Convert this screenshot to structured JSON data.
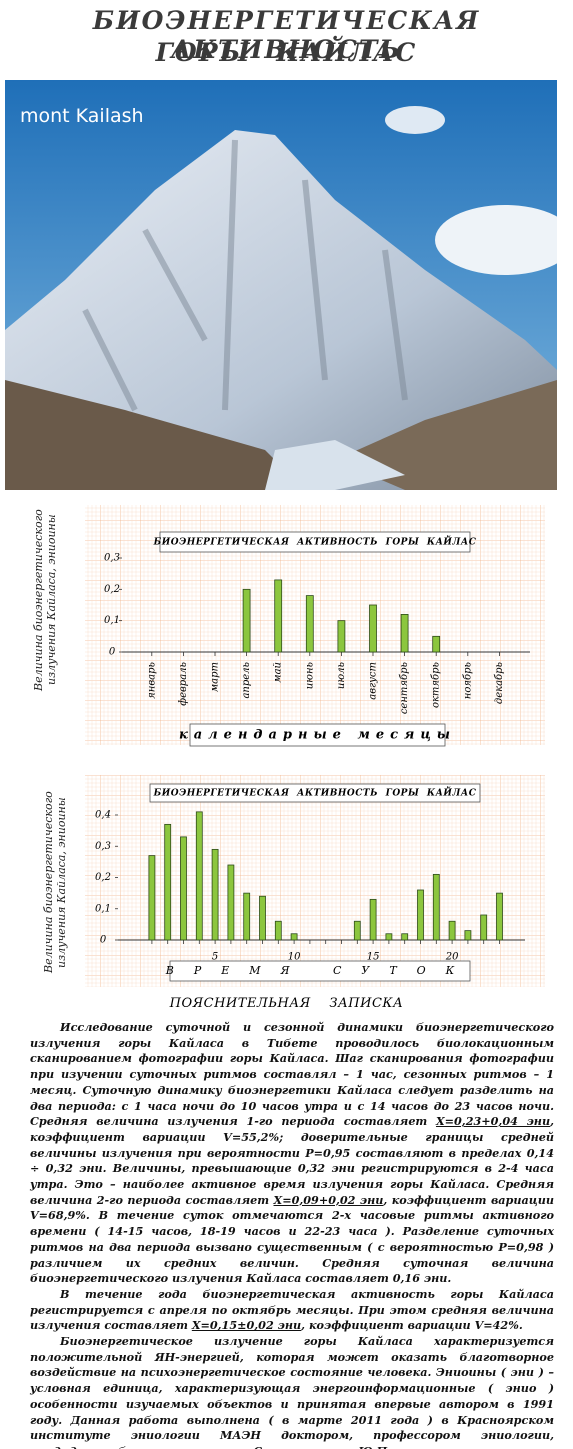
{
  "header": {
    "title": [
      "БИОЭНЕРГЕТИЧЕСКАЯ АКТИВНОСТЬ",
      "ГОРЫ КАЙЛАС"
    ]
  },
  "photo": {
    "caption": "mont Kailash"
  },
  "chart_data": [
    {
      "type": "bar",
      "title": "БИОЭНЕРГЕТИЧЕСКАЯ АКТИВНОСТЬ ГОРЫ КАЙЛАС",
      "y_label": "Величина биоэнергетического излучения Кайласа, эниоины",
      "x_label": "календарные месяцы",
      "categories": [
        "январь",
        "февраль",
        "март",
        "апрель",
        "май",
        "июнь",
        "июль",
        "август",
        "сентябрь",
        "октябрь",
        "ноябрь",
        "декабрь"
      ],
      "values": [
        0,
        0,
        0,
        0.2,
        0.23,
        0.18,
        0.1,
        0.15,
        0.12,
        0.05,
        0,
        0
      ],
      "color": "#8cc63e",
      "ylim": [
        0,
        0.3
      ],
      "yticks": [
        0,
        {
          "value": 0.1,
          "label": "0,1"
        },
        {
          "value": 0.2,
          "label": "0,2"
        },
        {
          "value": 0.3,
          "label": "0,3"
        }
      ]
    },
    {
      "type": "bar",
      "title": "БИОЭНЕРГЕТИЧЕСКАЯ АКТИВНОСТЬ ГОРЫ КАЙЛАС",
      "y_label": "Величина биоэнергетического излучения Кайласа, эниоины",
      "x_label": "ВРЕМЯ СУТОК",
      "categories": [
        null,
        null,
        null,
        null,
        "5",
        null,
        null,
        null,
        null,
        "10",
        null,
        null,
        null,
        null,
        "15",
        null,
        null,
        null,
        null,
        "20",
        null,
        null,
        null
      ],
      "values": [
        0.27,
        0.37,
        0.33,
        0.41,
        0.29,
        0.24,
        0.15,
        0.14,
        0.06,
        0.02,
        0,
        0,
        0,
        0.06,
        0.13,
        0.02,
        0.02,
        0.16,
        0.21,
        0.06,
        0.03,
        0.08,
        0.15
      ],
      "color": "#8cc63e",
      "ylim": [
        0,
        0.4
      ],
      "yticks": [
        0,
        {
          "value": 0.1,
          "label": "0,1"
        },
        {
          "value": 0.2,
          "label": "0,2"
        },
        {
          "value": 0.3,
          "label": "0,3"
        },
        {
          "value": 0.4,
          "label": "0,4"
        }
      ]
    }
  ],
  "note": {
    "heading": "ПОЯСНИТЕЛЬНАЯ ЗАПИСКА",
    "paragraphs": [
      [
        "Исследование суточной и сезонной динамики биоэнергетического излучения горы Кайласа в Тибете проводилось биолокационным сканированием фотографии горы Кайласа. Шаг сканирования фотографии при изучении суточных ритмов составлял – 1 час, сезонных ритмов – 1 месяц. Суточную динамику биоэнергетики Кайласа следует разделить на два периода: с 1 часа ночи до 10 часов утра и с 14 часов до 23 часов ночи. Средняя величина излучения 1-го периода составляет ",
        {
          "text": "X=0,23+0,04 эни",
          "underline": true
        },
        ", коэффициент вариации V=55,2%; доверительные границы средней величины излучения при вероятности P=0,95 составляют в пределах 0,14 ÷ 0,32 эни. Величины, превышающие 0,32 эни регистрируются в 2-4 часа утра. Это – наиболее активное время излучения горы Кайласа. Средняя величина 2-го периода составляет ",
        {
          "text": "X=0,09+0,02 эни",
          "underline": true
        },
        ", коэффициент вариации V=68,9%. В течение суток отмечаются 2-х часовые ритмы активного времени ( 14-15 часов, 18-19 часов и 22-23 часа ). Разделение суточных ритмов на два периода вызвано существенным ( с вероятностью P=0,98 ) различием их средних величин. Средняя суточная величина биоэнергетического излучения Кайласа составляет 0,16 эни."
      ],
      [
        "В течение года биоэнергетическая активность горы Кайласа регистрируется с апреля по октябрь месяцы. При этом средняя величина излучения составляет ",
        {
          "text": "X=0,15±0,02 эни",
          "underline": true
        },
        ", коэффициент вариации V=42%."
      ],
      [
        "Биоэнергетическое излучение горы Кайласа характеризуется положительной ЯН-энергией, которая может оказать благотворное воздействие на психоэнергетическое состояние человека. Эниоины ( эни ) – условная единица, характеризующая энергоинформационные ( энио ) особенности изучаемых объектов и принятая впервые автором в 1991 году. Данная работа выполнена ( в марте 2011 года ) в Красноярском институте эниологии МАЭН доктором, профессором эниологии, кандидатом биологических наук Светогоровым Ю.П."
      ]
    ]
  }
}
